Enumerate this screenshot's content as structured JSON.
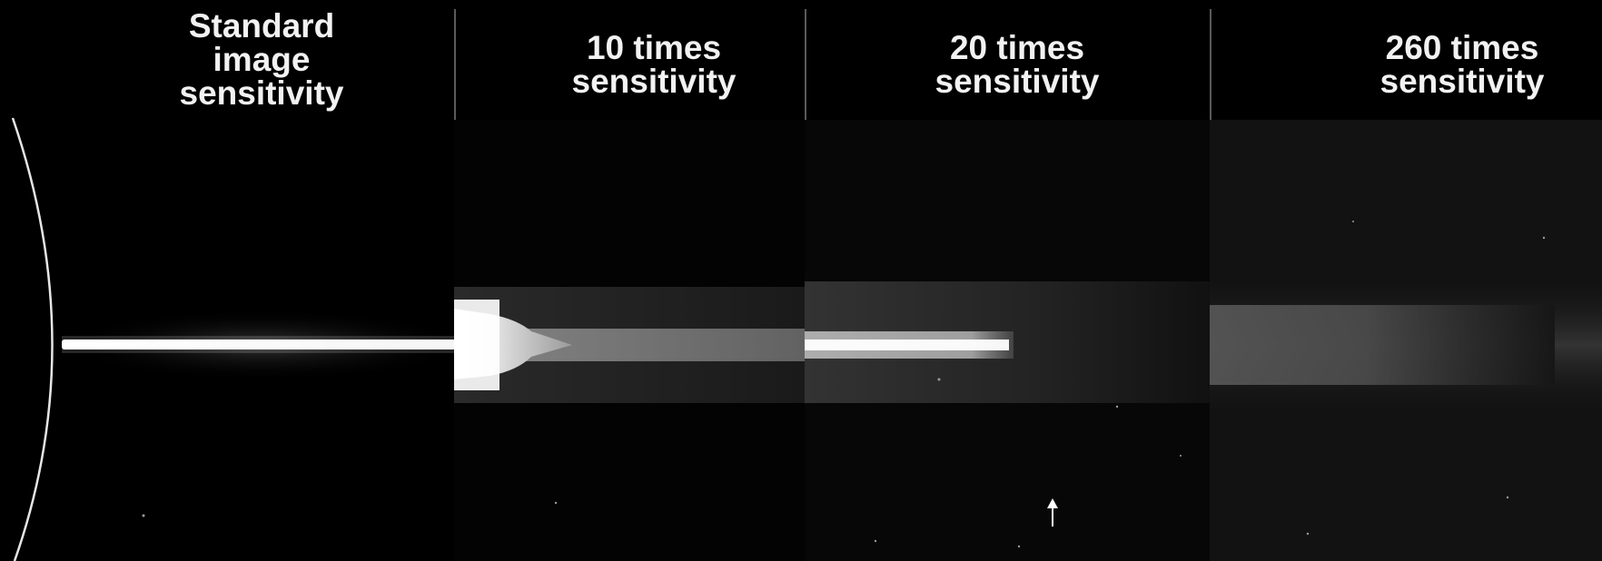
{
  "figure": {
    "panels": [
      {
        "id": "standard",
        "label": "Standard\nimage\nsensitivity"
      },
      {
        "id": "x10",
        "label": "10 times\nsensitivity"
      },
      {
        "id": "x20",
        "label": "20 times\nsensitivity"
      },
      {
        "id": "x260",
        "label": "260 times\nsensitivity"
      }
    ],
    "colors": {
      "background": "#000000",
      "text": "#f2f2f2",
      "divider": "#5a5a5a",
      "jet": "#ffffff"
    },
    "annotations": [
      {
        "name": "arrow-marker",
        "shape": "up-arrow"
      }
    ]
  }
}
